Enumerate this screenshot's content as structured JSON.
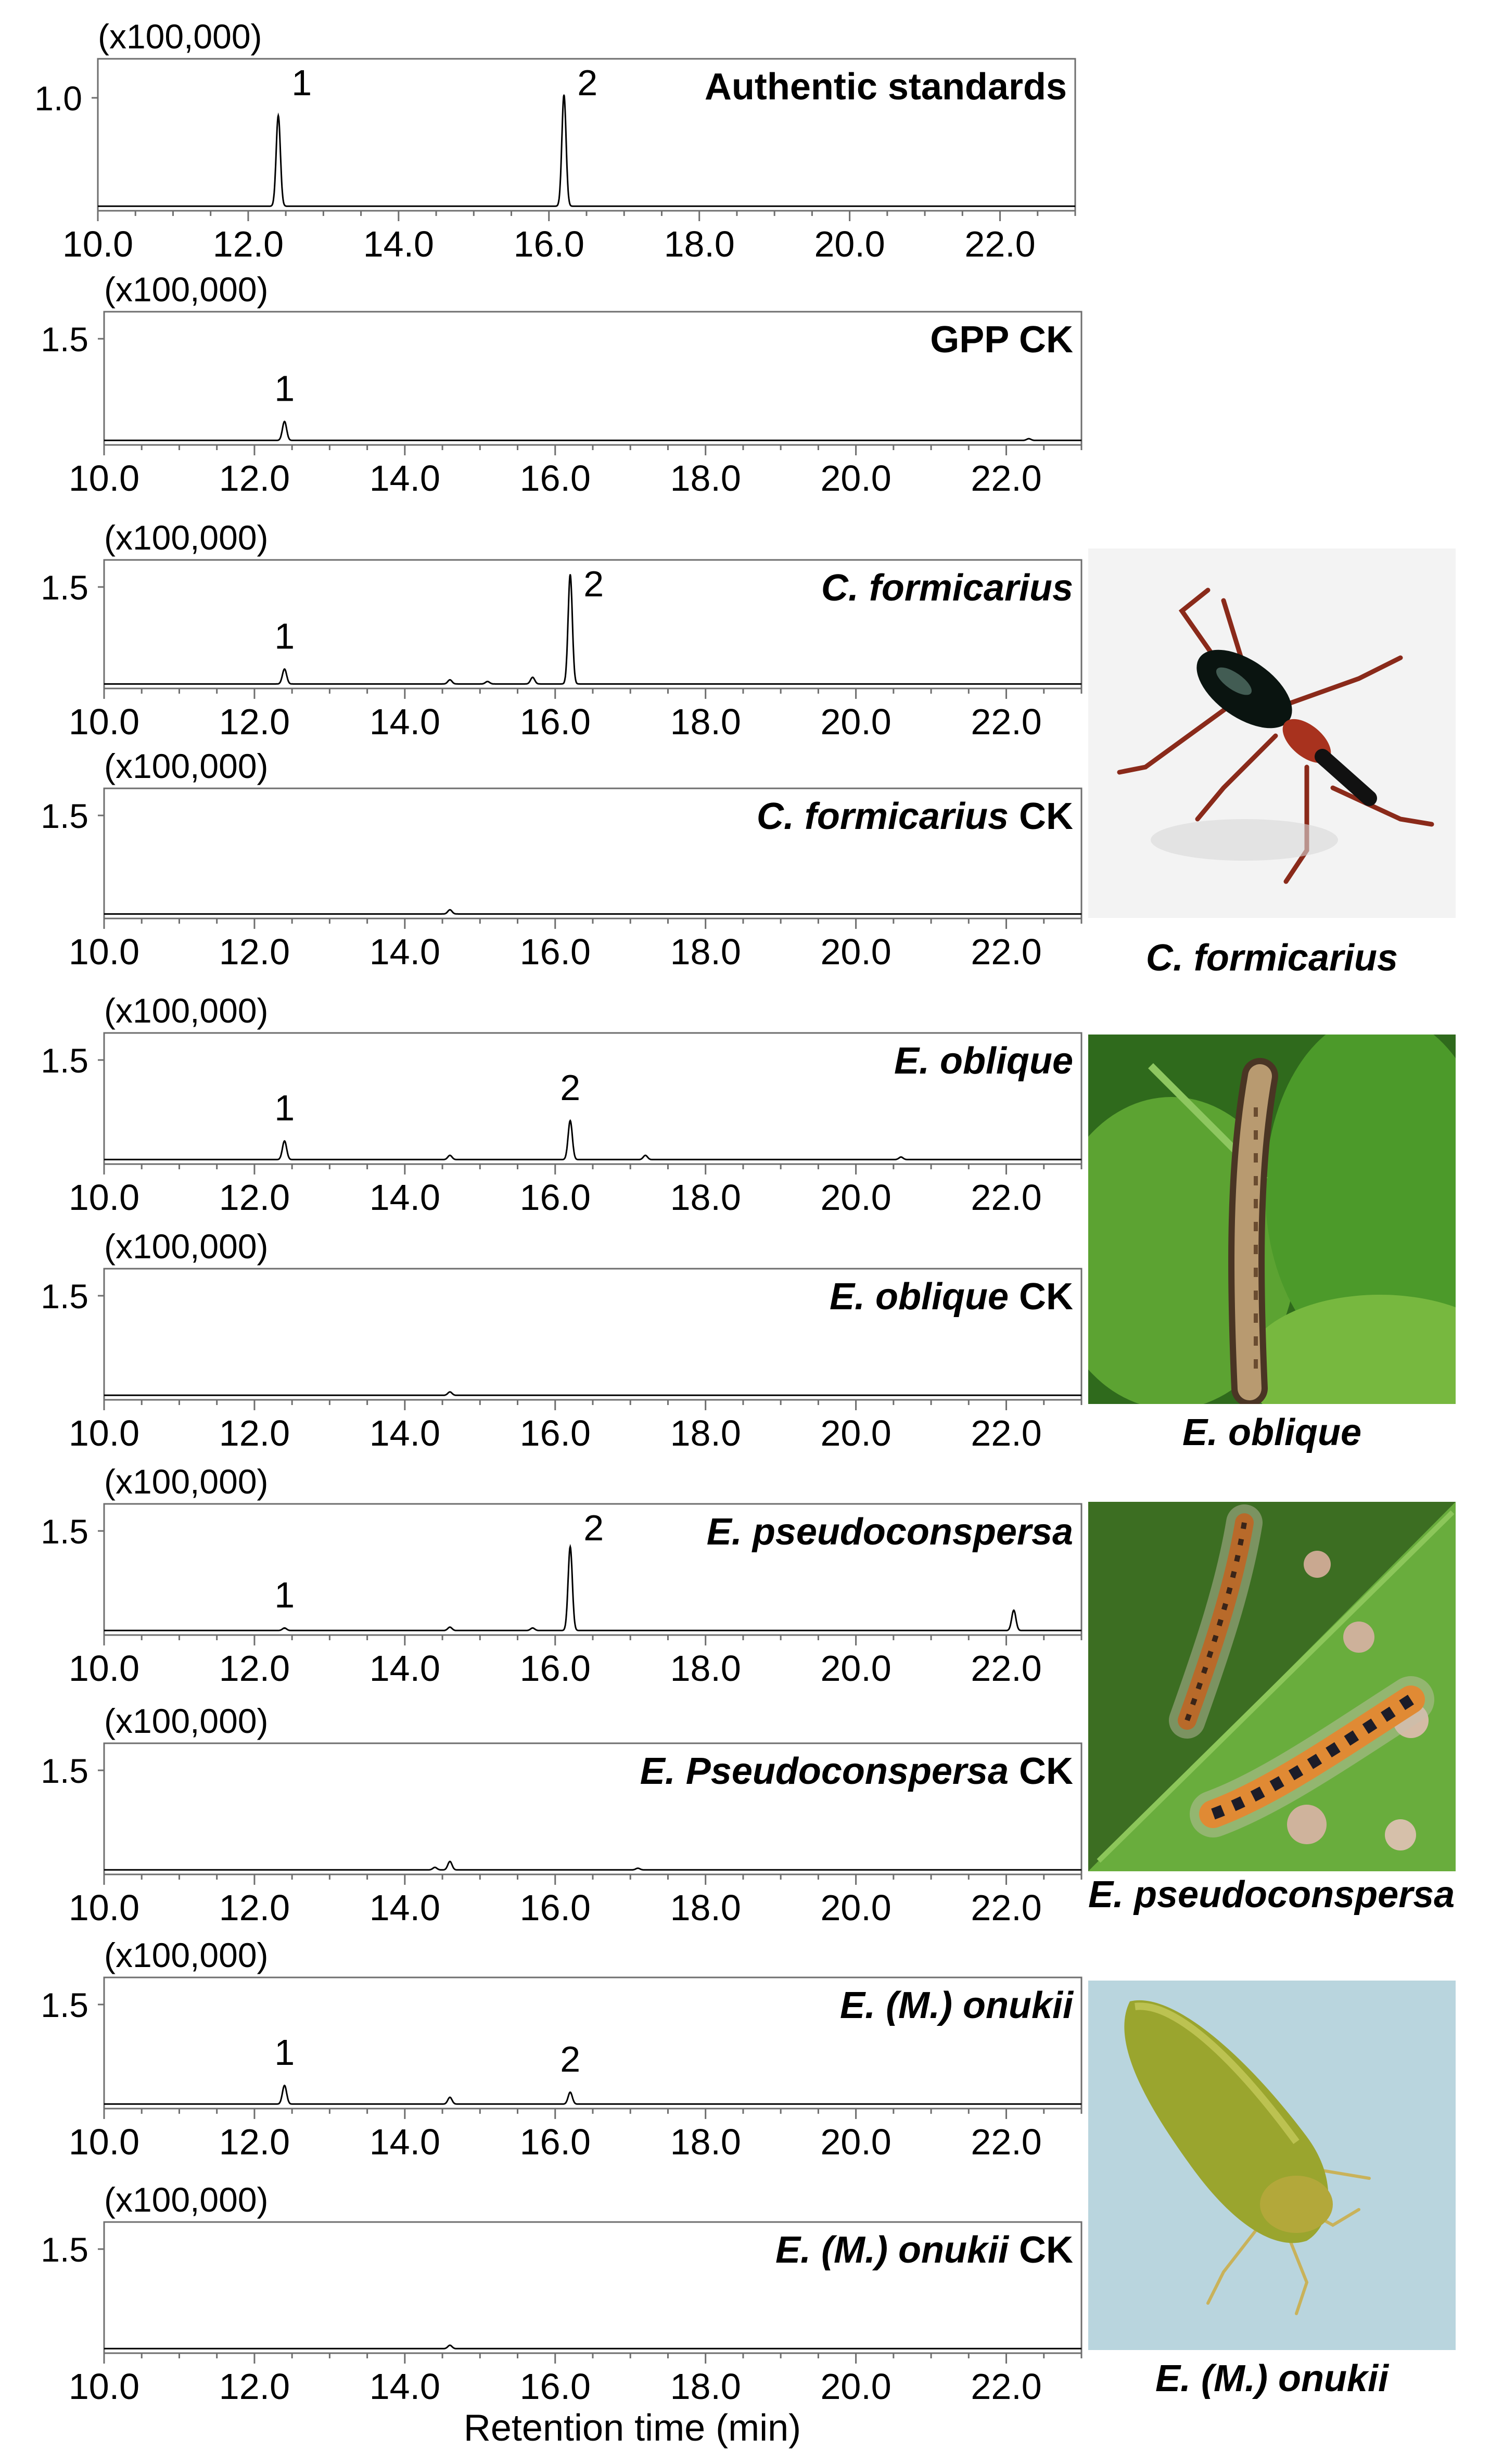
{
  "figure": {
    "xlabel": "Retention time (min)",
    "photos": [
      {
        "caption": "C. formicarius",
        "subject": "weevil-icon"
      },
      {
        "caption": "E. oblique",
        "subject": "caterpillar-on-leaf-icon"
      },
      {
        "caption": "E. pseudoconspersa",
        "subject": "hairy-caterpillars-on-leaf-icon"
      },
      {
        "caption": "E. (M.) onukii",
        "subject": "leafhopper-icon"
      }
    ]
  },
  "chart_data": [
    {
      "type": "line",
      "title": "Authentic standards",
      "title_italic": false,
      "title_suffix": "",
      "scale_label": "(x100,000)",
      "ytick": "1.0",
      "xlim": [
        10.0,
        23.0
      ],
      "xticks": [
        "10.0",
        "12.0",
        "14.0",
        "16.0",
        "18.0",
        "20.0",
        "22.0"
      ],
      "peaks": [
        {
          "x": 12.4,
          "y": 0.92,
          "label": "1"
        },
        {
          "x": 16.2,
          "y": 1.13,
          "label": "2"
        }
      ],
      "minor": []
    },
    {
      "type": "line",
      "title": "GPP CK",
      "title_italic": false,
      "title_suffix": "",
      "scale_label": "(x100,000)",
      "ytick": "1.5",
      "xlim": [
        10.0,
        23.0
      ],
      "xticks": [
        "10.0",
        "12.0",
        "14.0",
        "16.0",
        "18.0",
        "20.0",
        "22.0"
      ],
      "peaks": [
        {
          "x": 12.4,
          "y": 0.22,
          "label": "1"
        }
      ],
      "minor": [
        {
          "x": 22.3,
          "y": 0.02
        }
      ]
    },
    {
      "type": "line",
      "title": "C. formicarius",
      "title_italic": true,
      "title_suffix": "",
      "scale_label": "(x100,000)",
      "ytick": "1.5",
      "xlim": [
        10.0,
        23.0
      ],
      "xticks": [
        "10.0",
        "12.0",
        "14.0",
        "16.0",
        "18.0",
        "20.0",
        "22.0"
      ],
      "peaks": [
        {
          "x": 12.4,
          "y": 0.18,
          "label": "1"
        },
        {
          "x": 16.2,
          "y": 1.32,
          "label": "2"
        }
      ],
      "minor": [
        {
          "x": 14.6,
          "y": 0.05
        },
        {
          "x": 15.1,
          "y": 0.03
        },
        {
          "x": 15.7,
          "y": 0.08
        }
      ]
    },
    {
      "type": "line",
      "title": "C. formicarius",
      "title_italic": true,
      "title_suffix": " CK",
      "scale_label": "(x100,000)",
      "ytick": "1.5",
      "xlim": [
        10.0,
        23.0
      ],
      "xticks": [
        "10.0",
        "12.0",
        "14.0",
        "16.0",
        "18.0",
        "20.0",
        "22.0"
      ],
      "peaks": [],
      "minor": [
        {
          "x": 14.6,
          "y": 0.05
        }
      ]
    },
    {
      "type": "line",
      "title": "E. oblique",
      "title_italic": true,
      "title_suffix": "",
      "scale_label": "(x100,000)",
      "ytick": "1.5",
      "xlim": [
        10.0,
        23.0
      ],
      "xticks": [
        "10.0",
        "12.0",
        "14.0",
        "16.0",
        "18.0",
        "20.0",
        "22.0"
      ],
      "peaks": [
        {
          "x": 12.4,
          "y": 0.22,
          "label": "1"
        },
        {
          "x": 16.2,
          "y": 0.46,
          "label": "2"
        }
      ],
      "minor": [
        {
          "x": 14.6,
          "y": 0.05
        },
        {
          "x": 17.2,
          "y": 0.05
        },
        {
          "x": 20.6,
          "y": 0.03
        }
      ]
    },
    {
      "type": "line",
      "title": "E. oblique",
      "title_italic": true,
      "title_suffix": " CK",
      "scale_label": "(x100,000)",
      "ytick": "1.5",
      "xlim": [
        10.0,
        23.0
      ],
      "xticks": [
        "10.0",
        "12.0",
        "14.0",
        "16.0",
        "18.0",
        "20.0",
        "22.0"
      ],
      "peaks": [],
      "minor": [
        {
          "x": 14.6,
          "y": 0.04
        }
      ]
    },
    {
      "type": "line",
      "title": "E. pseudoconspersa",
      "title_italic": true,
      "title_suffix": "",
      "scale_label": "(x100,000)",
      "ytick": "1.5",
      "xlim": [
        10.0,
        23.0
      ],
      "xticks": [
        "10.0",
        "12.0",
        "14.0",
        "16.0",
        "18.0",
        "20.0",
        "22.0"
      ],
      "peaks": [
        {
          "x": 12.4,
          "y": 0.03,
          "label": "1"
        },
        {
          "x": 16.2,
          "y": 0.99,
          "label": "2"
        }
      ],
      "minor": [
        {
          "x": 14.6,
          "y": 0.04
        },
        {
          "x": 15.7,
          "y": 0.03
        },
        {
          "x": 22.1,
          "y": 0.24
        }
      ]
    },
    {
      "type": "line",
      "title": "E. Pseudoconspersa",
      "title_italic": true,
      "title_suffix": " CK",
      "scale_label": "(x100,000)",
      "ytick": "1.5",
      "xlim": [
        10.0,
        23.0
      ],
      "xticks": [
        "10.0",
        "12.0",
        "14.0",
        "16.0",
        "18.0",
        "20.0",
        "22.0"
      ],
      "peaks": [],
      "minor": [
        {
          "x": 14.4,
          "y": 0.03
        },
        {
          "x": 14.6,
          "y": 0.1
        },
        {
          "x": 17.1,
          "y": 0.02
        }
      ]
    },
    {
      "type": "line",
      "title": "E. (M.) onukii",
      "title_italic": true,
      "title_suffix": "",
      "scale_label": "(x100,000)",
      "ytick": "1.5",
      "xlim": [
        10.0,
        23.0
      ],
      "xticks": [
        "10.0",
        "12.0",
        "14.0",
        "16.0",
        "18.0",
        "20.0",
        "22.0"
      ],
      "peaks": [
        {
          "x": 12.4,
          "y": 0.22,
          "label": "1"
        },
        {
          "x": 16.2,
          "y": 0.14,
          "label": "2"
        }
      ],
      "minor": [
        {
          "x": 14.6,
          "y": 0.08
        }
      ]
    },
    {
      "type": "line",
      "title": "E. (M.) onukii",
      "title_italic": true,
      "title_suffix": " CK",
      "scale_label": "(x100,000)",
      "ytick": "1.5",
      "xlim": [
        10.0,
        23.0
      ],
      "xticks": [
        "10.0",
        "12.0",
        "14.0",
        "16.0",
        "18.0",
        "20.0",
        "22.0"
      ],
      "peaks": [],
      "minor": [
        {
          "x": 14.6,
          "y": 0.04
        }
      ]
    }
  ]
}
